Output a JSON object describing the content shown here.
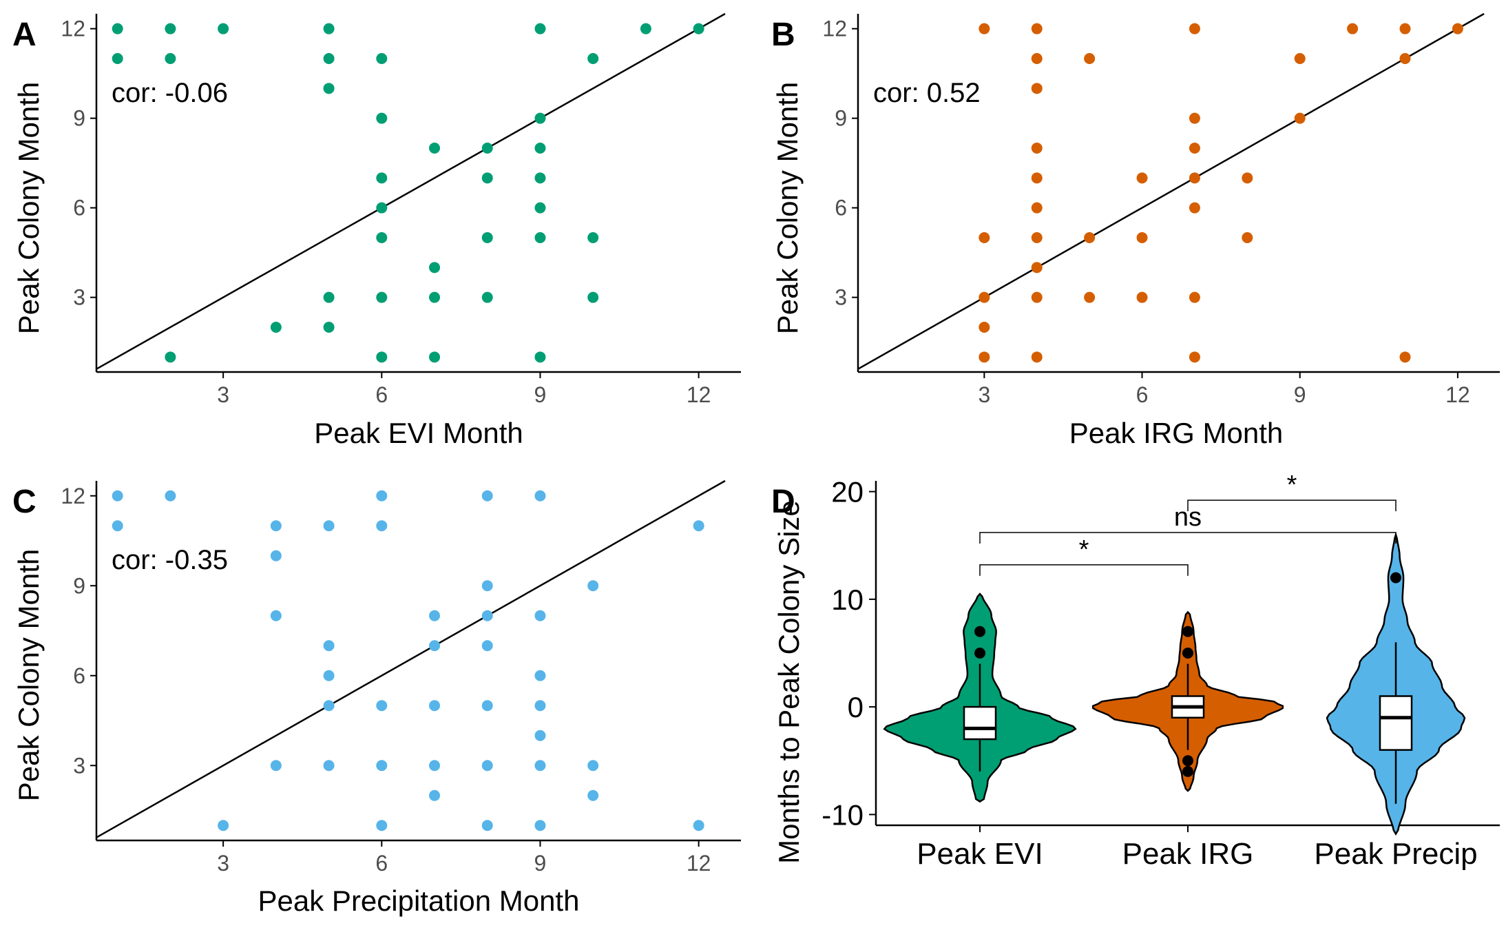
{
  "colors": {
    "evi": "#009E73",
    "irg": "#D55E00",
    "precip": "#56B4E9",
    "axis": "#000000",
    "tick_text": "#4d4d4d"
  },
  "chart_data": [
    {
      "panel": "A",
      "type": "scatter",
      "xlabel": "Peak EVI Month",
      "ylabel": "Peak Colony Month",
      "annotation": "cor: -0.06",
      "xlim": [
        0.6,
        12.8
      ],
      "ylim": [
        0.5,
        12.5
      ],
      "xticks": [
        3,
        6,
        9,
        12
      ],
      "yticks": [
        3,
        6,
        9,
        12
      ],
      "reference_line": "y = x",
      "color_key": "evi",
      "points": [
        [
          1,
          12
        ],
        [
          2,
          12
        ],
        [
          3,
          12
        ],
        [
          5,
          12
        ],
        [
          9,
          12
        ],
        [
          11,
          12
        ],
        [
          12,
          12
        ],
        [
          1,
          11
        ],
        [
          2,
          11
        ],
        [
          5,
          11
        ],
        [
          6,
          11
        ],
        [
          10,
          11
        ],
        [
          5,
          10
        ],
        [
          6,
          9
        ],
        [
          9,
          9
        ],
        [
          7,
          8
        ],
        [
          8,
          8
        ],
        [
          9,
          8
        ],
        [
          6,
          7
        ],
        [
          8,
          7
        ],
        [
          9,
          7
        ],
        [
          6,
          6
        ],
        [
          9,
          6
        ],
        [
          6,
          5
        ],
        [
          8,
          5
        ],
        [
          9,
          5
        ],
        [
          10,
          5
        ],
        [
          7,
          4
        ],
        [
          5,
          3
        ],
        [
          6,
          3
        ],
        [
          7,
          3
        ],
        [
          8,
          3
        ],
        [
          10,
          3
        ],
        [
          4,
          2
        ],
        [
          5,
          2
        ],
        [
          2,
          1
        ],
        [
          6,
          1
        ],
        [
          7,
          1
        ],
        [
          9,
          1
        ]
      ]
    },
    {
      "panel": "B",
      "type": "scatter",
      "xlabel": "Peak IRG Month",
      "ylabel": "Peak Colony Month",
      "annotation": "cor: 0.52",
      "xlim": [
        0.6,
        12.8
      ],
      "ylim": [
        0.5,
        12.5
      ],
      "xticks": [
        3,
        6,
        9,
        12
      ],
      "yticks": [
        3,
        6,
        9,
        12
      ],
      "reference_line": "y = x",
      "color_key": "irg",
      "points": [
        [
          3,
          12
        ],
        [
          4,
          12
        ],
        [
          7,
          12
        ],
        [
          10,
          12
        ],
        [
          11,
          12
        ],
        [
          12,
          12
        ],
        [
          4,
          11
        ],
        [
          5,
          11
        ],
        [
          9,
          11
        ],
        [
          11,
          11
        ],
        [
          4,
          10
        ],
        [
          7,
          9
        ],
        [
          9,
          9
        ],
        [
          4,
          8
        ],
        [
          7,
          8
        ],
        [
          4,
          7
        ],
        [
          6,
          7
        ],
        [
          7,
          7
        ],
        [
          8,
          7
        ],
        [
          4,
          6
        ],
        [
          7,
          6
        ],
        [
          3,
          5
        ],
        [
          4,
          5
        ],
        [
          5,
          5
        ],
        [
          6,
          5
        ],
        [
          8,
          5
        ],
        [
          4,
          4
        ],
        [
          3,
          3
        ],
        [
          4,
          3
        ],
        [
          5,
          3
        ],
        [
          6,
          3
        ],
        [
          7,
          3
        ],
        [
          3,
          2
        ],
        [
          3,
          1
        ],
        [
          4,
          1
        ],
        [
          7,
          1
        ],
        [
          11,
          1
        ]
      ]
    },
    {
      "panel": "C",
      "type": "scatter",
      "xlabel": "Peak Precipitation Month",
      "ylabel": "Peak Colony Month",
      "annotation": "cor: -0.35",
      "xlim": [
        0.6,
        12.8
      ],
      "ylim": [
        0.5,
        12.5
      ],
      "xticks": [
        3,
        6,
        9,
        12
      ],
      "yticks": [
        3,
        6,
        9,
        12
      ],
      "reference_line": "y = x",
      "color_key": "precip",
      "points": [
        [
          1,
          12
        ],
        [
          2,
          12
        ],
        [
          6,
          12
        ],
        [
          8,
          12
        ],
        [
          9,
          12
        ],
        [
          1,
          11
        ],
        [
          4,
          11
        ],
        [
          5,
          11
        ],
        [
          6,
          11
        ],
        [
          12,
          11
        ],
        [
          4,
          10
        ],
        [
          8,
          9
        ],
        [
          10,
          9
        ],
        [
          4,
          8
        ],
        [
          7,
          8
        ],
        [
          8,
          8
        ],
        [
          9,
          8
        ],
        [
          5,
          7
        ],
        [
          7,
          7
        ],
        [
          8,
          7
        ],
        [
          5,
          6
        ],
        [
          9,
          6
        ],
        [
          5,
          5
        ],
        [
          6,
          5
        ],
        [
          7,
          5
        ],
        [
          8,
          5
        ],
        [
          9,
          5
        ],
        [
          9,
          4
        ],
        [
          4,
          3
        ],
        [
          5,
          3
        ],
        [
          6,
          3
        ],
        [
          7,
          3
        ],
        [
          8,
          3
        ],
        [
          9,
          3
        ],
        [
          10,
          3
        ],
        [
          7,
          2
        ],
        [
          10,
          2
        ],
        [
          3,
          1
        ],
        [
          6,
          1
        ],
        [
          8,
          1
        ],
        [
          9,
          1
        ],
        [
          12,
          1
        ]
      ]
    },
    {
      "panel": "D",
      "type": "violin",
      "ylabel": "Months to Peak Colony Size",
      "ylim": [
        -11,
        21
      ],
      "yticks": [
        -10,
        0,
        10,
        20
      ],
      "categories": [
        "Peak EVI",
        "Peak IRG",
        "Peak Precip"
      ],
      "series": [
        {
          "name": "Peak EVI",
          "color_key": "evi",
          "box": {
            "whisker_low": -6,
            "q1": -3,
            "median": -2,
            "q3": 0,
            "whisker_high": 4
          },
          "outliers": [
            5,
            7
          ],
          "violin_range": [
            -8.8,
            10.5
          ],
          "density": [
            [
              -8.8,
              0.04
            ],
            [
              -7,
              0.08
            ],
            [
              -5,
              0.22
            ],
            [
              -4,
              0.5
            ],
            [
              -3,
              0.8
            ],
            [
              -2,
              1.0
            ],
            [
              -1,
              0.75
            ],
            [
              0,
              0.4
            ],
            [
              1,
              0.22
            ],
            [
              3,
              0.13
            ],
            [
              5,
              0.15
            ],
            [
              6,
              0.16
            ],
            [
              7,
              0.17
            ],
            [
              8.5,
              0.12
            ],
            [
              10.5,
              0.02
            ]
          ]
        },
        {
          "name": "Peak IRG",
          "color_key": "irg",
          "box": {
            "whisker_low": -4,
            "q1": -1,
            "median": 0,
            "q3": 1,
            "whisker_high": 4
          },
          "outliers": [
            -6,
            -5,
            5,
            7
          ],
          "violin_range": [
            -7.8,
            8.8
          ],
          "density": [
            [
              -7.8,
              0.02
            ],
            [
              -6.5,
              0.06
            ],
            [
              -5,
              0.1
            ],
            [
              -3,
              0.2
            ],
            [
              -2,
              0.3
            ],
            [
              -1,
              0.8
            ],
            [
              0,
              1.0
            ],
            [
              0.5,
              0.9
            ],
            [
              1,
              0.5
            ],
            [
              2,
              0.2
            ],
            [
              3,
              0.12
            ],
            [
              4.5,
              0.09
            ],
            [
              5.5,
              0.08
            ],
            [
              7,
              0.06
            ],
            [
              8.8,
              0.02
            ]
          ]
        },
        {
          "name": "Peak Precip",
          "color_key": "precip",
          "box": {
            "whisker_low": -9,
            "q1": -4,
            "median": -1,
            "q3": 1,
            "whisker_high": 6
          },
          "outliers": [
            12
          ],
          "violin_range": [
            -11.8,
            16
          ],
          "density": [
            [
              -11.8,
              0.02
            ],
            [
              -9,
              0.1
            ],
            [
              -6,
              0.22
            ],
            [
              -4,
              0.45
            ],
            [
              -2,
              0.68
            ],
            [
              -1,
              0.72
            ],
            [
              0,
              0.62
            ],
            [
              2,
              0.48
            ],
            [
              4,
              0.38
            ],
            [
              6,
              0.2
            ],
            [
              8,
              0.12
            ],
            [
              10,
              0.07
            ],
            [
              12,
              0.08
            ],
            [
              14,
              0.04
            ],
            [
              16,
              0.01
            ]
          ]
        }
      ],
      "comparisons": [
        {
          "from": "Peak EVI",
          "to": "Peak IRG",
          "y": 13.2,
          "label": "*"
        },
        {
          "from": "Peak EVI",
          "to": "Peak Precip",
          "y": 16.2,
          "label": "ns"
        },
        {
          "from": "Peak IRG",
          "to": "Peak Precip",
          "y": 19.2,
          "label": "*"
        }
      ]
    }
  ]
}
